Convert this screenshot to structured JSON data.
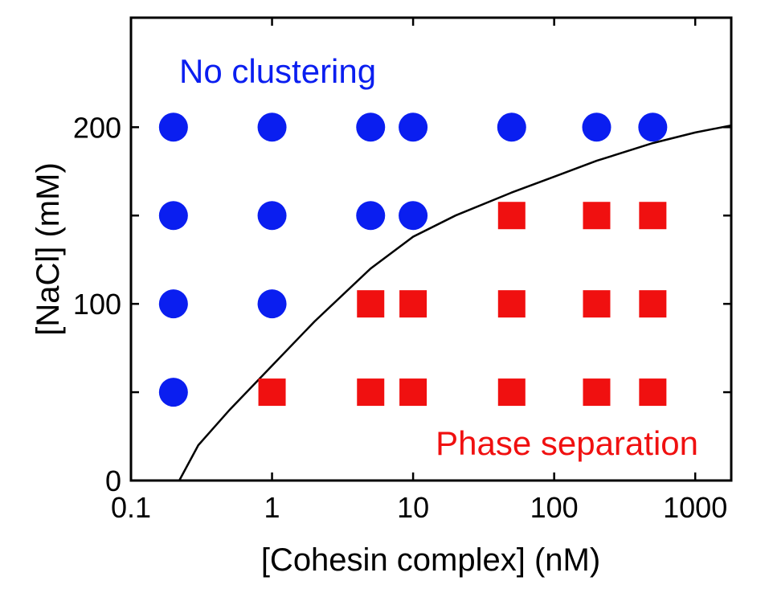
{
  "chart_data": {
    "type": "scatter",
    "xlabel": "[Cohesin complex] (nM)",
    "ylabel": "[NaCl] (mM)",
    "x_scale": "log",
    "xlim": [
      0.1,
      1800
    ],
    "ylim": [
      0,
      262
    ],
    "x_ticks": [
      {
        "value": 0.1,
        "label": "0.1"
      },
      {
        "value": 1,
        "label": "1"
      },
      {
        "value": 10,
        "label": "10"
      },
      {
        "value": 100,
        "label": "100"
      },
      {
        "value": 1000,
        "label": "1000"
      }
    ],
    "y_ticks": [
      {
        "value": 0,
        "label": "0"
      },
      {
        "value": 50,
        "label": ""
      },
      {
        "value": 100,
        "label": "100"
      },
      {
        "value": 150,
        "label": ""
      },
      {
        "value": 200,
        "label": "200"
      }
    ],
    "annotations": {
      "no_clustering": "No clustering",
      "phase_separation": "Phase separation"
    },
    "colors": {
      "no_clustering": "#0a1ef0",
      "phase_separation": "#f01010",
      "boundary": "#000000"
    },
    "series": [
      {
        "name": "",
        "marker": "circle",
        "color": "#0a1ef0",
        "points": [
          {
            "x": 0.2,
            "y": 200
          },
          {
            "x": 1,
            "y": 200
          },
          {
            "x": 5,
            "y": 200
          },
          {
            "x": 10,
            "y": 200
          },
          {
            "x": 50,
            "y": 200
          },
          {
            "x": 200,
            "y": 200
          },
          {
            "x": 500,
            "y": 200
          },
          {
            "x": 0.2,
            "y": 150
          },
          {
            "x": 1,
            "y": 150
          },
          {
            "x": 5,
            "y": 150
          },
          {
            "x": 10,
            "y": 150
          },
          {
            "x": 0.2,
            "y": 100
          },
          {
            "x": 1,
            "y": 100
          },
          {
            "x": 0.2,
            "y": 50
          }
        ]
      },
      {
        "name": "",
        "marker": "square",
        "color": "#f01010",
        "points": [
          {
            "x": 50,
            "y": 150
          },
          {
            "x": 200,
            "y": 150
          },
          {
            "x": 500,
            "y": 150
          },
          {
            "x": 5,
            "y": 100
          },
          {
            "x": 10,
            "y": 100
          },
          {
            "x": 50,
            "y": 100
          },
          {
            "x": 200,
            "y": 100
          },
          {
            "x": 500,
            "y": 100
          },
          {
            "x": 1,
            "y": 50
          },
          {
            "x": 5,
            "y": 50
          },
          {
            "x": 10,
            "y": 50
          },
          {
            "x": 50,
            "y": 50
          },
          {
            "x": 200,
            "y": 50
          },
          {
            "x": 500,
            "y": 50
          }
        ]
      }
    ],
    "boundary_curve": [
      {
        "x": 0.22,
        "y": 0
      },
      {
        "x": 0.3,
        "y": 20
      },
      {
        "x": 0.5,
        "y": 40
      },
      {
        "x": 1,
        "y": 65
      },
      {
        "x": 2,
        "y": 90
      },
      {
        "x": 5,
        "y": 120
      },
      {
        "x": 10,
        "y": 138
      },
      {
        "x": 20,
        "y": 150
      },
      {
        "x": 50,
        "y": 163
      },
      {
        "x": 100,
        "y": 172
      },
      {
        "x": 200,
        "y": 181
      },
      {
        "x": 500,
        "y": 191
      },
      {
        "x": 1000,
        "y": 197
      },
      {
        "x": 1800,
        "y": 201
      }
    ]
  }
}
